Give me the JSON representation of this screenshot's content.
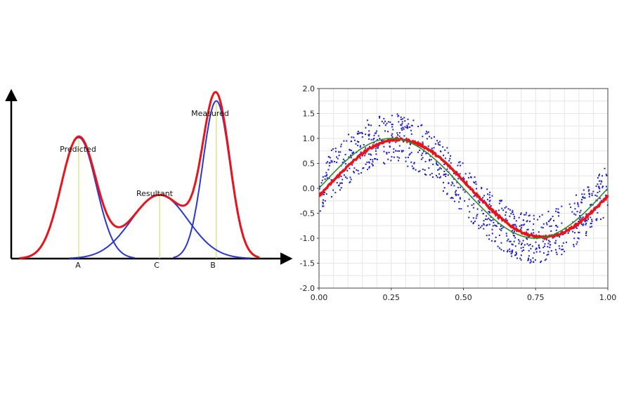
{
  "colors": {
    "background": "#ffffff",
    "sum_curve": "#e8141b",
    "component_curve": "#2a35d6",
    "marker_line": "#c8e04a",
    "axis": "#000000",
    "scatter": "#1f1fd0",
    "smoothed": "#e8141b",
    "fit": "#2e8b2e",
    "grid": "#e6e6e6"
  },
  "chart_data": [
    {
      "type": "line",
      "title": "",
      "description_labels": {
        "peak_a": "Predicted",
        "peak_c": "Resultant",
        "peak_b": "Measured"
      },
      "x_tick_labels": [
        "A",
        "C",
        "B"
      ],
      "x_range": [
        0,
        10
      ],
      "y_range": [
        0,
        1.05
      ],
      "components": [
        {
          "name": "Predicted",
          "center": 2.5,
          "height": 0.76,
          "width": 0.65
        },
        {
          "name": "Resultant",
          "center": 5.5,
          "height": 0.4,
          "width": 1.05
        },
        {
          "name": "Measured",
          "center": 7.6,
          "height": 0.99,
          "width": 0.5
        }
      ],
      "series": [
        {
          "name": "component-peaks",
          "color_key": "component_curve"
        },
        {
          "name": "sum",
          "color_key": "sum_curve"
        }
      ],
      "grid": false
    },
    {
      "type": "scatter",
      "title": "",
      "xlabel": "",
      "ylabel": "",
      "xlim": [
        0.0,
        1.0
      ],
      "ylim": [
        -2.0,
        2.0
      ],
      "x_ticks": [
        "0.00",
        "0.25",
        "0.50",
        "0.75",
        "1.00"
      ],
      "y_ticks": [
        "2.0",
        "1.5",
        "1.0",
        "0.5",
        "0.0",
        "-0.5",
        "-1.0",
        "-1.5",
        "-2.0"
      ],
      "x_tick_values": [
        0,
        0.25,
        0.5,
        0.75,
        1.0
      ],
      "y_tick_values": [
        2.0,
        1.5,
        1.0,
        0.5,
        0.0,
        -0.5,
        -1.0,
        -1.5,
        -2.0
      ],
      "grid": true,
      "series": [
        {
          "name": "noisy-samples",
          "kind": "scatter",
          "function": "sin(2*pi*x) + noise",
          "noise_amplitude": 0.5,
          "count": 900
        },
        {
          "name": "smoothed",
          "kind": "line",
          "function": "moving-average",
          "phase_lag": 0.025
        },
        {
          "name": "true-signal",
          "kind": "line",
          "function": "sin(2*pi*x)"
        }
      ]
    }
  ]
}
